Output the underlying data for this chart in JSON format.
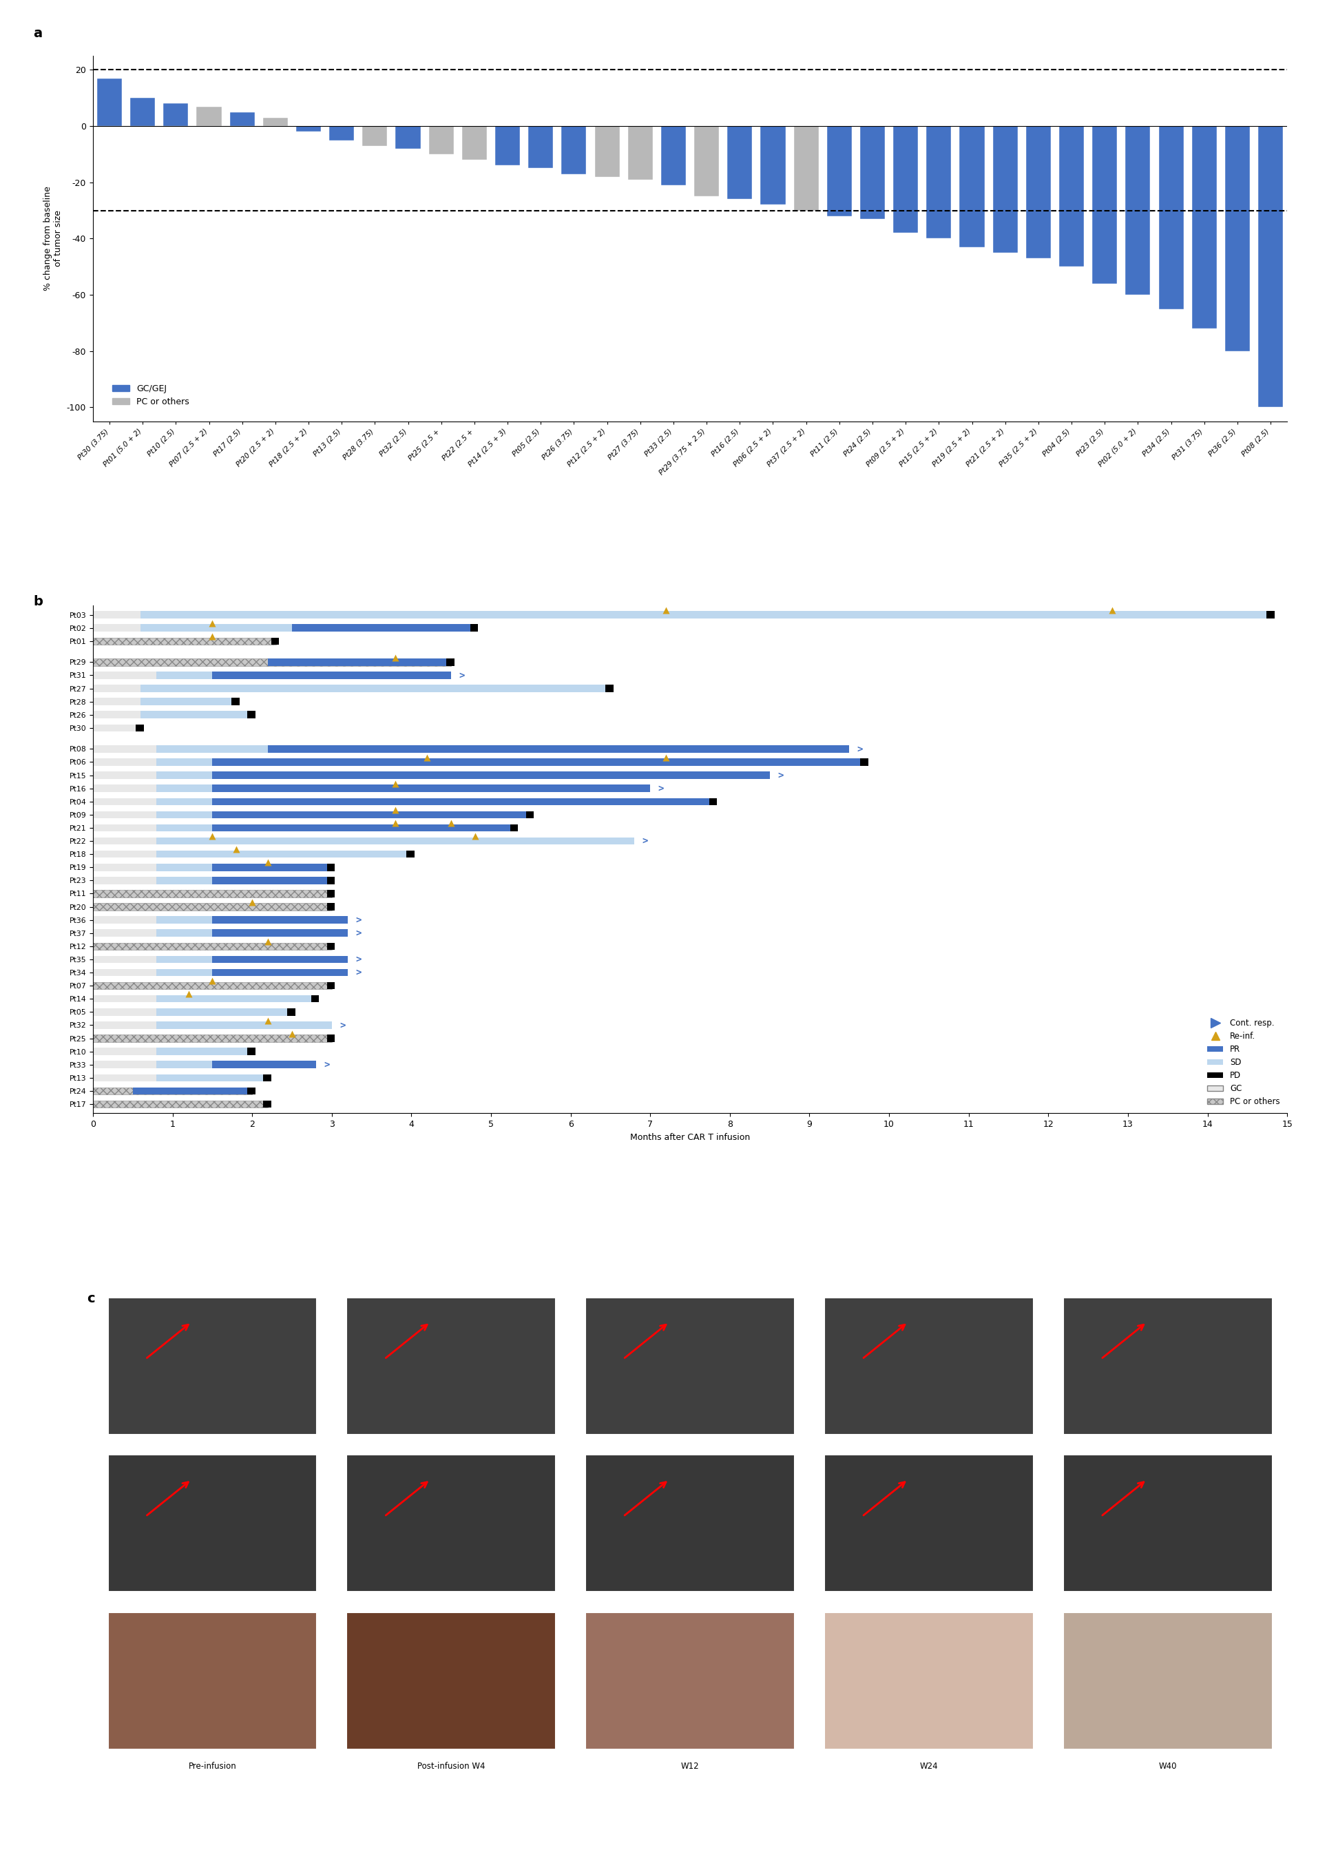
{
  "panel_a": {
    "labels": [
      "Pt30 (3.75)",
      "Pt01 (5.0 + 2)",
      "Pt10 (2.5)",
      "Pt07 (2.5 + 2)",
      "Pt17 (2.5)",
      "Pt20 (2.5 + 2)",
      "Pt18 (2.5 + 2)",
      "Pt13 (2.5)",
      "Pt28 (3.75)",
      "Pt32 (2.5)",
      "Pt25 (2.5 +",
      "Pt22 (2.5 +",
      "Pt14 (2.5 + 3)",
      "Pt05 (2.5)",
      "Pt26 (3.75)",
      "Pt12 (2.5 + 2)",
      "Pt27 (3.75)",
      "Pt33 (2.5)",
      "Pt29 (3.75 + 2.5)",
      "Pt16 (2.5)",
      "Pt06 (2.5 + 2)",
      "Pt37 (2.5 + 2)",
      "Pt11 (2.5)",
      "Pt24 (2.5)",
      "Pt09 (2.5 + 2)",
      "Pt15 (2.5 + 2)",
      "Pt19 (2.5 + 2)",
      "Pt21 (2.5 + 2)",
      "Pt35 (2.5 + 2)",
      "Pt04 (2.5)",
      "Pt23 (2.5)",
      "Pt02 (5.0 + 2)",
      "Pt34 (2.5)",
      "Pt31 (3.75)",
      "Pt36 (2.5)",
      "Pt08 (2.5)"
    ],
    "values": [
      17,
      10,
      8,
      7,
      5,
      3,
      -2,
      -5,
      -7,
      -8,
      -10,
      -12,
      -14,
      -15,
      -17,
      -18,
      -19,
      -21,
      -25,
      -26,
      -28,
      -30,
      -32,
      -33,
      -38,
      -40,
      -43,
      -45,
      -47,
      -50,
      -56,
      -60,
      -65,
      -72,
      -80,
      -100
    ],
    "colors": [
      "#4472c4",
      "#4472c4",
      "#4472c4",
      "#b8b8b8",
      "#4472c4",
      "#b8b8b8",
      "#4472c4",
      "#4472c4",
      "#b8b8b8",
      "#4472c4",
      "#b8b8b8",
      "#b8b8b8",
      "#4472c4",
      "#4472c4",
      "#4472c4",
      "#b8b8b8",
      "#b8b8b8",
      "#4472c4",
      "#b8b8b8",
      "#4472c4",
      "#4472c4",
      "#b8b8b8",
      "#4472c4",
      "#4472c4",
      "#4472c4",
      "#4472c4",
      "#4472c4",
      "#4472c4",
      "#4472c4",
      "#4472c4",
      "#4472c4",
      "#4472c4",
      "#4472c4",
      "#4472c4",
      "#4472c4",
      "#4472c4"
    ],
    "ylabel": "% change from baseline\nof tumor size",
    "ylim": [
      -105,
      25
    ],
    "yticks": [
      -100,
      -80,
      -60,
      -40,
      -20,
      0,
      20
    ],
    "dashed_lines": [
      20,
      -30
    ]
  },
  "panel_b": {
    "all_patients_ordered": [
      "Pt03",
      "Pt02",
      "Pt01",
      "Pt29",
      "Pt31",
      "Pt27",
      "Pt28",
      "Pt26",
      "Pt30",
      "Pt08",
      "Pt06",
      "Pt15",
      "Pt16",
      "Pt04",
      "Pt09",
      "Pt21",
      "Pt22",
      "Pt18",
      "Pt19",
      "Pt23",
      "Pt11",
      "Pt20",
      "Pt36",
      "Pt37",
      "Pt12",
      "Pt35",
      "Pt34",
      "Pt07",
      "Pt14",
      "Pt05",
      "Pt32",
      "Pt25",
      "Pt10",
      "Pt33",
      "Pt13",
      "Pt24",
      "Pt17"
    ],
    "dose_groups": {
      "5.0 × 10⁸": [
        "Pt03",
        "Pt02",
        "Pt01"
      ],
      "3.75 × 10⁸": [
        "Pt29",
        "Pt31",
        "Pt27",
        "Pt28",
        "Pt26",
        "Pt30"
      ],
      "2.5 × 10⁸": [
        "Pt08",
        "Pt06",
        "Pt15",
        "Pt16",
        "Pt04",
        "Pt09",
        "Pt21",
        "Pt22",
        "Pt18",
        "Pt19",
        "Pt23",
        "Pt11",
        "Pt20",
        "Pt36",
        "Pt37",
        "Pt12",
        "Pt35",
        "Pt34",
        "Pt07",
        "Pt14",
        "Pt05",
        "Pt32",
        "Pt25",
        "Pt10",
        "Pt33",
        "Pt13",
        "Pt24",
        "Pt17"
      ]
    },
    "xlabel": "Months after CAR T infusion",
    "xlim": [
      0,
      15
    ],
    "bars": {
      "Pt03": {
        "gc_start": 0,
        "gc_end": 0.6,
        "sd_start": 0.6,
        "sd_end": 14.8,
        "pr_start": null,
        "pr_end": null,
        "pd_end": 14.8,
        "reinf": [
          7.2,
          12.8
        ],
        "cont_resp": false,
        "is_pc": false
      },
      "Pt02": {
        "gc_start": 0,
        "gc_end": 0.6,
        "sd_start": 0.6,
        "sd_end": 2.5,
        "pr_start": 2.5,
        "pr_end": 4.8,
        "pd_end": 4.8,
        "reinf": [
          1.5
        ],
        "cont_resp": false,
        "is_pc": false
      },
      "Pt01": {
        "gc_start": 0,
        "gc_end": 2.3,
        "sd_start": null,
        "sd_end": null,
        "pr_start": null,
        "pr_end": null,
        "pd_end": 2.3,
        "reinf": [
          1.5
        ],
        "cont_resp": false,
        "is_pc": true
      },
      "Pt29": {
        "gc_start": 0,
        "gc_end": 2.2,
        "sd_start": null,
        "sd_end": null,
        "pr_start": 2.2,
        "pr_end": 4.5,
        "pd_end": 4.5,
        "reinf": [
          3.8
        ],
        "cont_resp": false,
        "is_pc": true
      },
      "Pt31": {
        "gc_start": 0,
        "gc_end": 0.8,
        "sd_start": 0.8,
        "sd_end": 1.5,
        "pr_start": 1.5,
        "pr_end": 4.5,
        "pd_end": null,
        "reinf": null,
        "cont_resp": true,
        "is_pc": false
      },
      "Pt27": {
        "gc_start": 0,
        "gc_end": 0.6,
        "sd_start": 0.6,
        "sd_end": 6.5,
        "pr_start": null,
        "pr_end": null,
        "pd_end": 6.5,
        "reinf": null,
        "cont_resp": false,
        "is_pc": false
      },
      "Pt28": {
        "gc_start": 0,
        "gc_end": 0.6,
        "sd_start": 0.6,
        "sd_end": 1.8,
        "pr_start": null,
        "pr_end": null,
        "pd_end": 1.8,
        "reinf": null,
        "cont_resp": false,
        "is_pc": false
      },
      "Pt26": {
        "gc_start": 0,
        "gc_end": 0.6,
        "sd_start": 0.6,
        "sd_end": 2.0,
        "pr_start": null,
        "pr_end": null,
        "pd_end": 2.0,
        "reinf": null,
        "cont_resp": false,
        "is_pc": false
      },
      "Pt30": {
        "gc_start": 0,
        "gc_end": 0.6,
        "sd_start": null,
        "sd_end": null,
        "pr_start": null,
        "pr_end": null,
        "pd_end": 0.6,
        "reinf": null,
        "cont_resp": false,
        "is_pc": false
      },
      "Pt08": {
        "gc_start": 0,
        "gc_end": 0.8,
        "sd_start": 0.8,
        "sd_end": 2.2,
        "pr_start": 2.2,
        "pr_end": 9.5,
        "pd_end": null,
        "reinf": null,
        "cont_resp": true,
        "is_pc": false
      },
      "Pt06": {
        "gc_start": 0,
        "gc_end": 0.8,
        "sd_start": 0.8,
        "sd_end": 1.5,
        "pr_start": 1.5,
        "pr_end": 9.7,
        "pd_end": 9.7,
        "reinf": [
          4.2,
          7.2
        ],
        "cont_resp": false,
        "is_pc": false
      },
      "Pt15": {
        "gc_start": 0,
        "gc_end": 0.8,
        "sd_start": 0.8,
        "sd_end": 1.5,
        "pr_start": 1.5,
        "pr_end": 8.5,
        "pd_end": null,
        "reinf": null,
        "cont_resp": true,
        "is_pc": false
      },
      "Pt16": {
        "gc_start": 0,
        "gc_end": 0.8,
        "sd_start": 0.8,
        "sd_end": 1.5,
        "pr_start": 1.5,
        "pr_end": 7.0,
        "pd_end": null,
        "reinf": [
          3.8
        ],
        "cont_resp": true,
        "is_pc": false
      },
      "Pt04": {
        "gc_start": 0,
        "gc_end": 0.8,
        "sd_start": 0.8,
        "sd_end": 1.5,
        "pr_start": 1.5,
        "pr_end": 7.8,
        "pd_end": 7.8,
        "reinf": null,
        "cont_resp": false,
        "is_pc": false
      },
      "Pt09": {
        "gc_start": 0,
        "gc_end": 0.8,
        "sd_start": 0.8,
        "sd_end": 1.5,
        "pr_start": 1.5,
        "pr_end": 5.5,
        "pd_end": 5.5,
        "reinf": [
          3.8
        ],
        "cont_resp": false,
        "is_pc": false
      },
      "Pt21": {
        "gc_start": 0,
        "gc_end": 0.8,
        "sd_start": 0.8,
        "sd_end": 1.5,
        "pr_start": 1.5,
        "pr_end": 5.3,
        "pd_end": 5.3,
        "reinf": [
          3.8,
          4.5
        ],
        "cont_resp": false,
        "is_pc": false
      },
      "Pt22": {
        "gc_start": 0,
        "gc_end": 0.8,
        "sd_start": 0.8,
        "sd_end": 6.8,
        "pr_start": null,
        "pr_end": null,
        "pd_end": null,
        "reinf": [
          1.5,
          4.8
        ],
        "cont_resp": true,
        "is_pc": false
      },
      "Pt18": {
        "gc_start": 0,
        "gc_end": 0.8,
        "sd_start": 0.8,
        "sd_end": 4.0,
        "pr_start": null,
        "pr_end": null,
        "pd_end": 4.0,
        "reinf": [
          1.8
        ],
        "cont_resp": false,
        "is_pc": false
      },
      "Pt19": {
        "gc_start": 0,
        "gc_end": 0.8,
        "sd_start": 0.8,
        "sd_end": 1.5,
        "pr_start": 1.5,
        "pr_end": 3.0,
        "pd_end": 3.0,
        "reinf": [
          2.2
        ],
        "cont_resp": false,
        "is_pc": false
      },
      "Pt23": {
        "gc_start": 0,
        "gc_end": 0.8,
        "sd_start": 0.8,
        "sd_end": 1.5,
        "pr_start": 1.5,
        "pr_end": 3.0,
        "pd_end": 3.0,
        "reinf": null,
        "cont_resp": false,
        "is_pc": false
      },
      "Pt11": {
        "gc_start": 0,
        "gc_end": 3.0,
        "sd_start": null,
        "sd_end": null,
        "pr_start": null,
        "pr_end": null,
        "pd_end": 3.0,
        "reinf": null,
        "cont_resp": false,
        "is_pc": true
      },
      "Pt20": {
        "gc_start": 0,
        "gc_end": 3.0,
        "sd_start": null,
        "sd_end": null,
        "pr_start": null,
        "pr_end": null,
        "pd_end": 3.0,
        "reinf": [
          2.0
        ],
        "cont_resp": false,
        "is_pc": true
      },
      "Pt36": {
        "gc_start": 0,
        "gc_end": 0.8,
        "sd_start": 0.8,
        "sd_end": 1.5,
        "pr_start": 1.5,
        "pr_end": 3.2,
        "pd_end": null,
        "reinf": null,
        "cont_resp": true,
        "is_pc": false
      },
      "Pt37": {
        "gc_start": 0,
        "gc_end": 0.8,
        "sd_start": 0.8,
        "sd_end": 1.5,
        "pr_start": 1.5,
        "pr_end": 3.2,
        "pd_end": null,
        "reinf": null,
        "cont_resp": true,
        "is_pc": false
      },
      "Pt12": {
        "gc_start": 0,
        "gc_end": 3.0,
        "sd_start": null,
        "sd_end": null,
        "pr_start": null,
        "pr_end": null,
        "pd_end": 3.0,
        "reinf": [
          2.2
        ],
        "cont_resp": false,
        "is_pc": true
      },
      "Pt35": {
        "gc_start": 0,
        "gc_end": 0.8,
        "sd_start": 0.8,
        "sd_end": 1.5,
        "pr_start": 1.5,
        "pr_end": 3.2,
        "pd_end": null,
        "reinf": null,
        "cont_resp": true,
        "is_pc": false
      },
      "Pt34": {
        "gc_start": 0,
        "gc_end": 0.8,
        "sd_start": 0.8,
        "sd_end": 1.5,
        "pr_start": 1.5,
        "pr_end": 3.2,
        "pd_end": null,
        "reinf": null,
        "cont_resp": true,
        "is_pc": false
      },
      "Pt07": {
        "gc_start": 0,
        "gc_end": 3.0,
        "sd_start": null,
        "sd_end": null,
        "pr_start": null,
        "pr_end": null,
        "pd_end": 3.0,
        "reinf": [
          1.5
        ],
        "cont_resp": false,
        "is_pc": true
      },
      "Pt14": {
        "gc_start": 0,
        "gc_end": 0.8,
        "sd_start": 0.8,
        "sd_end": 2.8,
        "pr_start": null,
        "pr_end": null,
        "pd_end": 2.8,
        "reinf": [
          1.2
        ],
        "cont_resp": false,
        "is_pc": false
      },
      "Pt05": {
        "gc_start": 0,
        "gc_end": 0.8,
        "sd_start": 0.8,
        "sd_end": 2.5,
        "pr_start": null,
        "pr_end": null,
        "pd_end": 2.5,
        "reinf": null,
        "cont_resp": false,
        "is_pc": false
      },
      "Pt32": {
        "gc_start": 0,
        "gc_end": 0.8,
        "sd_start": 0.8,
        "sd_end": 3.0,
        "pr_start": null,
        "pr_end": null,
        "pd_end": null,
        "reinf": [
          2.2
        ],
        "cont_resp": true,
        "is_pc": false
      },
      "Pt25": {
        "gc_start": 0,
        "gc_end": 3.0,
        "sd_start": null,
        "sd_end": null,
        "pr_start": null,
        "pr_end": null,
        "pd_end": 3.0,
        "reinf": [
          2.5
        ],
        "cont_resp": false,
        "is_pc": true
      },
      "Pt10": {
        "gc_start": 0,
        "gc_end": 0.8,
        "sd_start": 0.8,
        "sd_end": 2.0,
        "pr_start": null,
        "pr_end": null,
        "pd_end": 2.0,
        "reinf": null,
        "cont_resp": false,
        "is_pc": false
      },
      "Pt33": {
        "gc_start": 0,
        "gc_end": 0.8,
        "sd_start": 0.8,
        "sd_end": 1.5,
        "pr_start": 1.5,
        "pr_end": 2.8,
        "pd_end": null,
        "reinf": null,
        "cont_resp": true,
        "is_pc": false
      },
      "Pt13": {
        "gc_start": 0,
        "gc_end": 0.8,
        "sd_start": 0.8,
        "sd_end": 2.2,
        "pr_start": null,
        "pr_end": null,
        "pd_end": 2.2,
        "reinf": null,
        "cont_resp": false,
        "is_pc": false
      },
      "Pt24": {
        "gc_start": 0,
        "gc_end": 2.0,
        "sd_start": null,
        "sd_end": null,
        "pr_start": 0.5,
        "pr_end": 2.0,
        "pd_end": 2.0,
        "reinf": null,
        "cont_resp": false,
        "is_pc": true
      },
      "Pt17": {
        "gc_start": 0,
        "gc_end": 2.2,
        "sd_start": null,
        "sd_end": null,
        "pr_start": null,
        "pr_end": null,
        "pd_end": 2.2,
        "reinf": null,
        "cont_resp": false,
        "is_pc": true
      }
    }
  },
  "colors": {
    "blue": "#4472c4",
    "light_blue": "#bdd7ee",
    "light_gray": "#d0d0d0",
    "gray_gc": "#e8e8e8",
    "dark": "#1a1a1a",
    "yellow": "#d4a017",
    "white": "#ffffff",
    "hatch_color": "#aaaaaa"
  }
}
